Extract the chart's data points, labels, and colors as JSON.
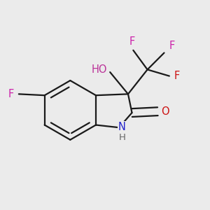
{
  "background_color": "#ebebeb",
  "bond_color": "#1a1a1a",
  "bond_width": 1.6,
  "atom_colors": {
    "N": "#2222cc",
    "H_gray": "#666666",
    "O_red": "#cc1111",
    "O_pink": "#bb3399",
    "F_pink": "#cc22aa",
    "F_lower": "#cc1111"
  },
  "font_size": 10.5,
  "fig_size": [
    3.0,
    3.0
  ],
  "dpi": 100,
  "xlim": [
    0.1,
    0.9
  ],
  "ylim": [
    0.1,
    0.9
  ]
}
